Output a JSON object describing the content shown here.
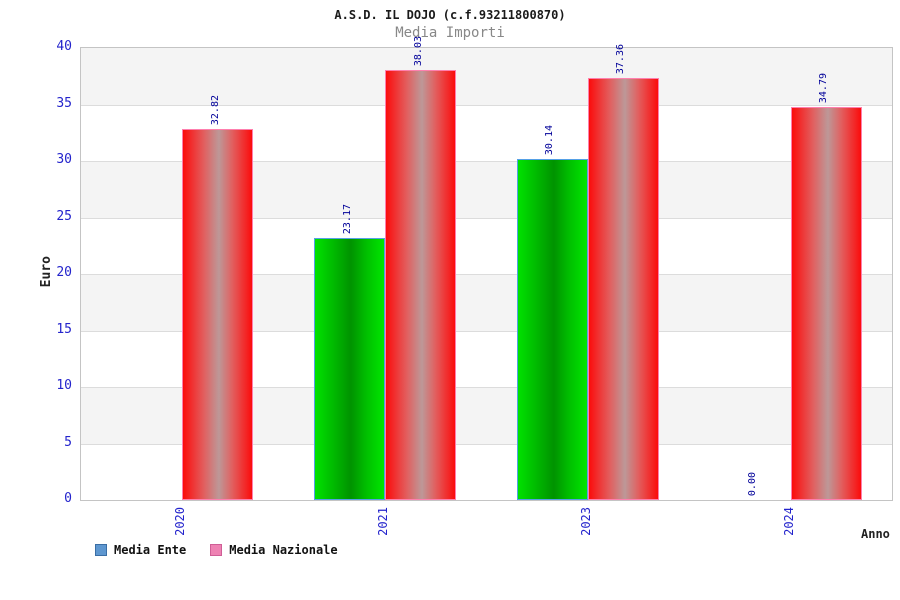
{
  "header": {
    "title": "A.S.D. IL DOJO (c.f.93211800870)",
    "subtitle": "Media Importi"
  },
  "legend": [
    {
      "label": "Media Ente",
      "swatch_color": "#5e97d0",
      "swatch_border": "#3a6ea5"
    },
    {
      "label": "Media Nazionale",
      "swatch_color": "#ee82b3",
      "swatch_border": "#cf5e96"
    }
  ],
  "chart_data": {
    "type": "bar",
    "title": "Media Importi",
    "categories": [
      "2020",
      "2021",
      "2023",
      "2024"
    ],
    "series": [
      {
        "name": "Media Ente",
        "bar_style": "green",
        "values": [
          null,
          23.17,
          30.14,
          0.0
        ],
        "value_labels": [
          null,
          "23.17",
          "30.14",
          "0.00"
        ]
      },
      {
        "name": "Media Nazionale",
        "bar_style": "red",
        "values": [
          32.82,
          38.03,
          37.36,
          34.79
        ],
        "value_labels": [
          "32.82",
          "38.03",
          "37.36",
          "34.79"
        ]
      }
    ],
    "xlabel": "Anno",
    "ylabel": "Euro",
    "ylim": [
      0,
      40
    ],
    "ytick_step": 5,
    "grid": "horizontal-bands",
    "legend_position": "bottom-left",
    "band_colors": {
      "even": "#ffffff",
      "odd": "#f4f4f4"
    },
    "label_color": "#000099",
    "tick_color": "#2424cc"
  }
}
